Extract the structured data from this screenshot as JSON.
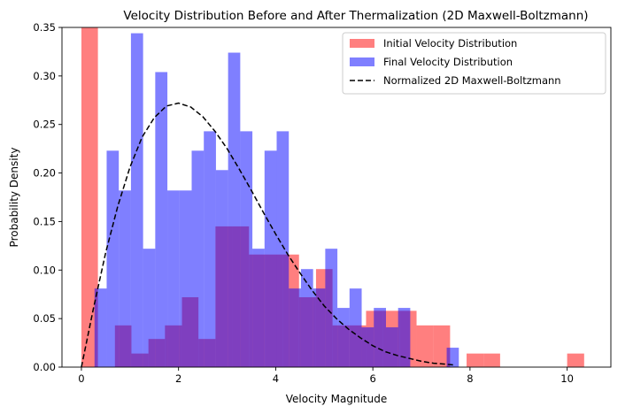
{
  "chart_data": {
    "type": "bar",
    "title": "Velocity Distribution Before and After Thermalization (2D Maxwell-Boltzmann)",
    "xlabel": "Velocity Magnitude",
    "ylabel": "Probability Density",
    "xlim": [
      -0.4,
      10.9
    ],
    "ylim": [
      0,
      0.35
    ],
    "xticks": [
      0,
      2,
      4,
      6,
      8,
      10
    ],
    "yticks": [
      0.0,
      0.05,
      0.1,
      0.15,
      0.2,
      0.25,
      0.3,
      0.35
    ],
    "ytick_labels": [
      "0.00",
      "0.05",
      "0.10",
      "0.15",
      "0.20",
      "0.25",
      "0.30",
      "0.35"
    ],
    "legend_position": "upper right",
    "colors": {
      "initial": "#ff0000",
      "final": "#0000ff",
      "curve": "#000000"
    },
    "series": [
      {
        "name": "Initial Velocity Distribution",
        "kind": "histogram",
        "color": "#ff0000",
        "opacity": 0.5,
        "bins": [
          {
            "x0": 0.0,
            "x1": 0.34,
            "value": 0.35
          },
          {
            "x0": 0.34,
            "x1": 0.69,
            "value": 0.0
          },
          {
            "x0": 0.69,
            "x1": 1.03,
            "value": 0.043
          },
          {
            "x0": 1.03,
            "x1": 1.38,
            "value": 0.014
          },
          {
            "x0": 1.38,
            "x1": 1.72,
            "value": 0.029
          },
          {
            "x0": 1.72,
            "x1": 2.07,
            "value": 0.043
          },
          {
            "x0": 2.07,
            "x1": 2.41,
            "value": 0.072
          },
          {
            "x0": 2.41,
            "x1": 2.76,
            "value": 0.029
          },
          {
            "x0": 2.76,
            "x1": 3.1,
            "value": 0.145
          },
          {
            "x0": 3.1,
            "x1": 3.45,
            "value": 0.145
          },
          {
            "x0": 3.45,
            "x1": 3.79,
            "value": 0.116
          },
          {
            "x0": 3.79,
            "x1": 4.14,
            "value": 0.116
          },
          {
            "x0": 4.14,
            "x1": 4.48,
            "value": 0.116
          },
          {
            "x0": 4.48,
            "x1": 4.83,
            "value": 0.072
          },
          {
            "x0": 4.83,
            "x1": 5.17,
            "value": 0.101
          },
          {
            "x0": 5.17,
            "x1": 5.52,
            "value": 0.043
          },
          {
            "x0": 5.52,
            "x1": 5.86,
            "value": 0.043
          },
          {
            "x0": 5.86,
            "x1": 6.21,
            "value": 0.058
          },
          {
            "x0": 6.21,
            "x1": 6.55,
            "value": 0.058
          },
          {
            "x0": 6.55,
            "x1": 6.9,
            "value": 0.058
          },
          {
            "x0": 6.9,
            "x1": 7.24,
            "value": 0.043
          },
          {
            "x0": 7.24,
            "x1": 7.59,
            "value": 0.043
          },
          {
            "x0": 7.59,
            "x1": 7.93,
            "value": 0.0
          },
          {
            "x0": 7.93,
            "x1": 8.28,
            "value": 0.014
          },
          {
            "x0": 8.28,
            "x1": 8.62,
            "value": 0.014
          },
          {
            "x0": 10.0,
            "x1": 10.35,
            "value": 0.014
          }
        ]
      },
      {
        "name": "Final Velocity Distribution",
        "kind": "histogram",
        "color": "#0000ff",
        "opacity": 0.5,
        "bins": [
          {
            "x0": 0.27,
            "x1": 0.52,
            "value": 0.081
          },
          {
            "x0": 0.52,
            "x1": 0.77,
            "value": 0.223
          },
          {
            "x0": 0.77,
            "x1": 1.02,
            "value": 0.182
          },
          {
            "x0": 1.02,
            "x1": 1.27,
            "value": 0.344
          },
          {
            "x0": 1.27,
            "x1": 1.52,
            "value": 0.122
          },
          {
            "x0": 1.52,
            "x1": 1.77,
            "value": 0.304
          },
          {
            "x0": 1.77,
            "x1": 2.02,
            "value": 0.182
          },
          {
            "x0": 2.02,
            "x1": 2.27,
            "value": 0.182
          },
          {
            "x0": 2.27,
            "x1": 2.52,
            "value": 0.223
          },
          {
            "x0": 2.52,
            "x1": 2.77,
            "value": 0.243
          },
          {
            "x0": 2.77,
            "x1": 3.02,
            "value": 0.203
          },
          {
            "x0": 3.02,
            "x1": 3.27,
            "value": 0.324
          },
          {
            "x0": 3.27,
            "x1": 3.52,
            "value": 0.243
          },
          {
            "x0": 3.52,
            "x1": 3.77,
            "value": 0.122
          },
          {
            "x0": 3.77,
            "x1": 4.02,
            "value": 0.223
          },
          {
            "x0": 4.02,
            "x1": 4.27,
            "value": 0.243
          },
          {
            "x0": 4.27,
            "x1": 4.52,
            "value": 0.081
          },
          {
            "x0": 4.52,
            "x1": 4.77,
            "value": 0.101
          },
          {
            "x0": 4.77,
            "x1": 5.02,
            "value": 0.081
          },
          {
            "x0": 5.02,
            "x1": 5.27,
            "value": 0.122
          },
          {
            "x0": 5.27,
            "x1": 5.52,
            "value": 0.061
          },
          {
            "x0": 5.52,
            "x1": 5.77,
            "value": 0.081
          },
          {
            "x0": 5.77,
            "x1": 6.02,
            "value": 0.041
          },
          {
            "x0": 6.02,
            "x1": 6.27,
            "value": 0.061
          },
          {
            "x0": 6.27,
            "x1": 6.52,
            "value": 0.041
          },
          {
            "x0": 6.52,
            "x1": 6.77,
            "value": 0.061
          },
          {
            "x0": 6.77,
            "x1": 7.02,
            "value": 0.0
          },
          {
            "x0": 7.02,
            "x1": 7.27,
            "value": 0.0
          },
          {
            "x0": 7.27,
            "x1": 7.52,
            "value": 0.0
          },
          {
            "x0": 7.52,
            "x1": 7.77,
            "value": 0.02
          }
        ]
      },
      {
        "name": "Normalized 2D Maxwell-Boltzmann",
        "kind": "line",
        "style": "dashed",
        "color": "#000000",
        "x": [
          0,
          0.25,
          0.5,
          0.75,
          1.0,
          1.25,
          1.5,
          1.75,
          2.0,
          2.25,
          2.5,
          2.75,
          3.0,
          3.25,
          3.5,
          3.75,
          4.0,
          4.25,
          4.5,
          4.75,
          5.0,
          5.25,
          5.5,
          5.75,
          6.0,
          6.25,
          6.5,
          6.75,
          7.0,
          7.25,
          7.5,
          7.7
        ],
        "y": [
          0.0,
          0.061,
          0.118,
          0.166,
          0.206,
          0.237,
          0.257,
          0.269,
          0.272,
          0.268,
          0.258,
          0.243,
          0.225,
          0.204,
          0.182,
          0.159,
          0.137,
          0.116,
          0.097,
          0.079,
          0.063,
          0.05,
          0.039,
          0.03,
          0.022,
          0.016,
          0.012,
          0.009,
          0.006,
          0.004,
          0.003,
          0.002
        ]
      }
    ]
  }
}
